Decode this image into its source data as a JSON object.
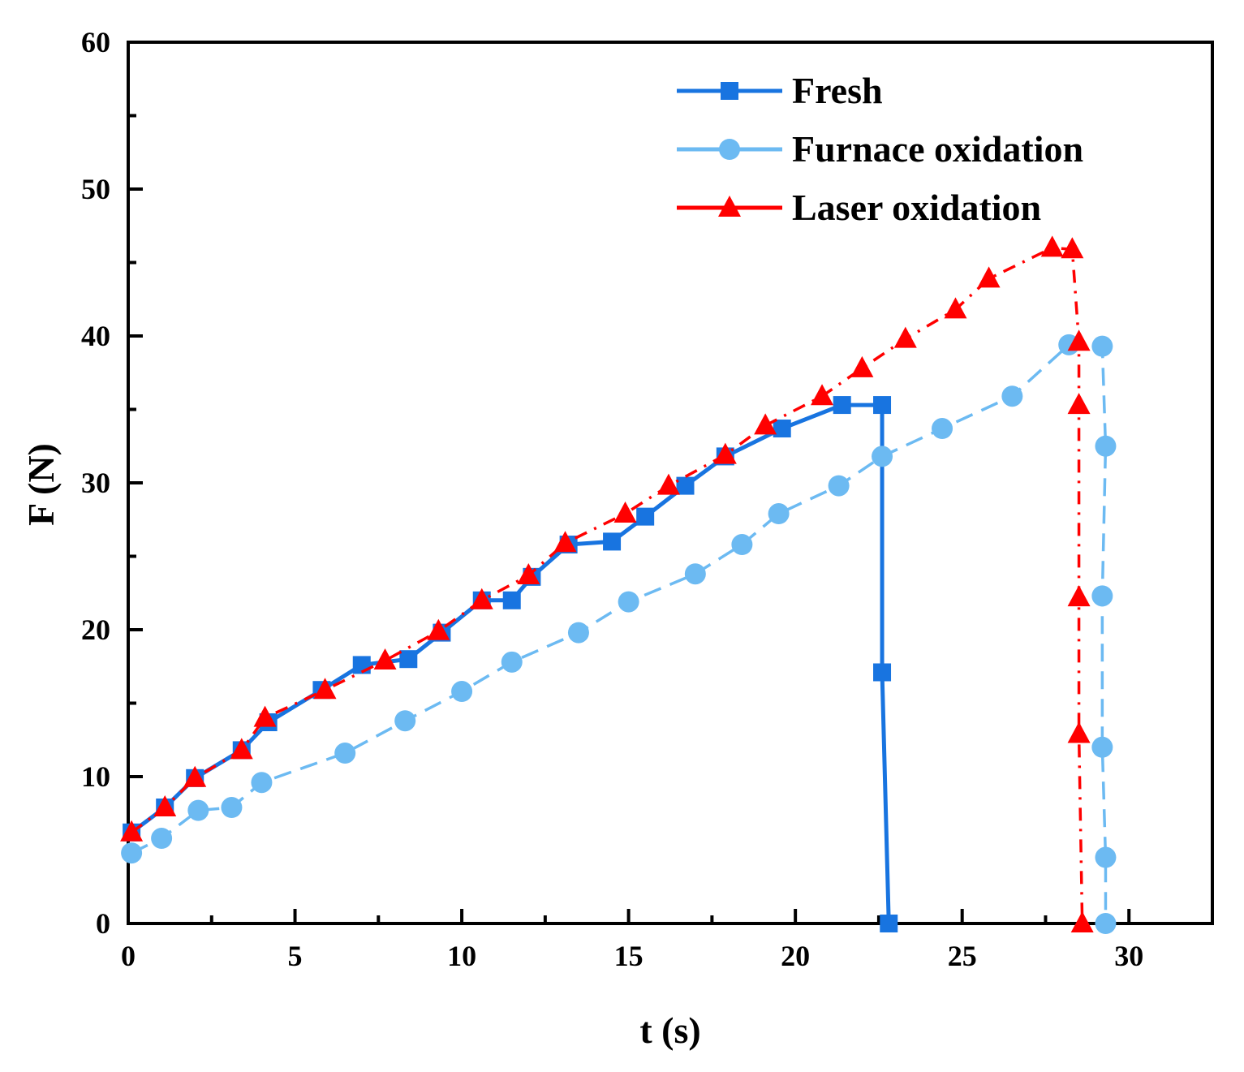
{
  "chart_data": {
    "type": "line",
    "title": "",
    "xlabel": "t (s)",
    "ylabel": "F (N)",
    "xlim": [
      0,
      32.5
    ],
    "ylim": [
      0,
      60
    ],
    "xticks": [
      0,
      5,
      10,
      15,
      20,
      25,
      30
    ],
    "yticks": [
      0,
      10,
      20,
      30,
      40,
      50,
      60
    ],
    "grid": false,
    "legend_position": "top-right",
    "series": [
      {
        "name": "Fresh",
        "color": "#1874e0",
        "marker": "square",
        "line_style": "solid",
        "x": [
          0.1,
          1.1,
          2.0,
          3.4,
          4.2,
          5.8,
          7.0,
          8.4,
          9.4,
          10.6,
          11.5,
          12.1,
          13.2,
          14.5,
          15.5,
          16.7,
          17.9,
          19.6,
          21.4,
          22.6,
          22.6,
          22.8
        ],
        "y": [
          6.2,
          7.9,
          9.9,
          11.8,
          13.7,
          15.9,
          17.6,
          18.0,
          19.8,
          22.0,
          22.0,
          23.6,
          25.8,
          26.0,
          27.7,
          29.8,
          31.8,
          33.7,
          35.3,
          35.3,
          17.1,
          0
        ]
      },
      {
        "name": "Furnace oxidation",
        "color": "#6cbaf2",
        "marker": "circle",
        "line_style": "dashed",
        "x": [
          0.1,
          1.0,
          2.1,
          3.1,
          4.0,
          6.5,
          8.3,
          10.0,
          11.5,
          13.5,
          15.0,
          17.0,
          18.4,
          19.5,
          21.3,
          22.6,
          24.4,
          26.5,
          28.2,
          29.2,
          29.3,
          29.2,
          29.2,
          29.3,
          29.3
        ],
        "y": [
          4.8,
          5.8,
          7.7,
          7.9,
          9.6,
          11.6,
          13.8,
          15.8,
          17.8,
          19.8,
          21.9,
          23.8,
          25.8,
          27.9,
          29.8,
          31.8,
          33.7,
          35.9,
          39.4,
          39.3,
          32.5,
          22.3,
          12.0,
          4.5,
          0
        ]
      },
      {
        "name": "Laser oxidation",
        "color": "#ff0000",
        "marker": "triangle",
        "line_style": "dash-dot",
        "x": [
          0.1,
          1.1,
          2.0,
          3.4,
          4.1,
          5.9,
          7.7,
          9.3,
          10.6,
          12.0,
          13.1,
          14.9,
          16.2,
          17.9,
          19.1,
          20.8,
          22.0,
          23.3,
          24.8,
          25.8,
          27.7,
          28.3,
          28.5,
          28.5,
          28.5,
          28.5,
          28.6
        ],
        "y": [
          6.2,
          7.9,
          9.9,
          11.8,
          14.0,
          15.9,
          17.9,
          19.9,
          22.0,
          23.7,
          25.9,
          27.9,
          29.8,
          31.9,
          33.9,
          35.9,
          37.8,
          39.8,
          41.8,
          43.9,
          46.0,
          45.9,
          39.6,
          35.3,
          22.2,
          12.9,
          0
        ]
      }
    ]
  }
}
